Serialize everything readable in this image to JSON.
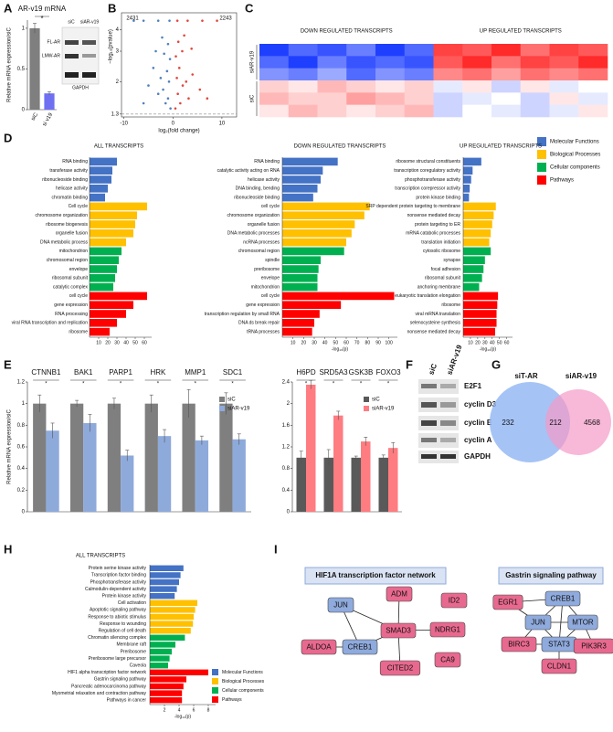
{
  "panel_labels": [
    "A",
    "B",
    "C",
    "D",
    "E",
    "F",
    "G",
    "H",
    "I"
  ],
  "chart_data": [
    {
      "type": "bar",
      "title": "AR-v19 mRNA",
      "categories": [
        "siC",
        "si v19"
      ],
      "values": [
        1,
        0.2
      ],
      "errors": [
        0.06,
        0.02
      ],
      "colors": [
        "#7f7f7f",
        "#6f6ff2"
      ],
      "ylim": [
        0,
        1.1
      ],
      "yticks": [
        0,
        0.5,
        1
      ],
      "ylabel": "Relative mRNA expression/siC",
      "annotation": "*"
    },
    {
      "type": "scatter",
      "xlabel": "log₂(fold change)",
      "ylabel": "−log₁₀(pvalue)",
      "log_y": true,
      "xlim": [
        -10.5,
        13
      ],
      "xticks": [
        -10,
        0,
        10
      ],
      "ylim": [
        1.25,
        5
      ],
      "yticks": [
        1.3,
        2,
        3,
        4
      ],
      "hline": 1.3,
      "series": [
        {
          "color": "#4f81bd",
          "count": 2431,
          "x": [
            -0.5,
            -1,
            -1.5,
            -2,
            -0.8,
            -1.2,
            -2.5,
            -3,
            -0.6,
            -1.8,
            -4,
            -5,
            -1,
            -2.2,
            -0.7,
            -3,
            -6,
            -8,
            -6,
            -3.5
          ],
          "y": [
            1.4,
            1.6,
            1.5,
            1.8,
            2.0,
            2.3,
            2.1,
            1.7,
            2.7,
            2.9,
            2.4,
            1.9,
            3.3,
            3.6,
            4.5,
            4.5,
            4.5,
            4.5,
            1.5,
            3.0
          ]
        },
        {
          "color": "#e0473c",
          "count": 2243,
          "x": [
            0.5,
            1,
            1.5,
            2,
            0.8,
            1.3,
            2.7,
            3.2,
            0.6,
            1.9,
            4,
            5.5,
            1.1,
            2.3,
            0.9,
            3,
            6,
            9,
            7,
            3.8
          ],
          "y": [
            1.4,
            1.7,
            1.5,
            1.9,
            2.1,
            2.4,
            2.0,
            1.6,
            2.8,
            3.0,
            2.2,
            1.8,
            3.4,
            3.7,
            4.5,
            4.5,
            4.5,
            4.5,
            1.6,
            3.1
          ]
        }
      ]
    },
    {
      "type": "heatmap",
      "colors": [
        "#1f3fff",
        "#ffffff",
        "#ff2a2a"
      ],
      "col_labels": [
        "DOWN REGULATED TRANSCRIPTS",
        null,
        null,
        null,
        null,
        null,
        "UP REGULATED TRANSCRIPTS",
        null,
        null,
        null,
        null,
        null
      ],
      "row_labels": [
        "siAR-v19",
        null,
        null,
        "siC",
        null,
        null
      ],
      "z": [
        [
          -0.9,
          -0.7,
          -0.8,
          -0.6,
          -0.9,
          -0.7,
          0.8,
          0.7,
          0.9,
          0.6,
          0.8,
          0.7
        ],
        [
          -0.7,
          -0.9,
          -0.6,
          -0.8,
          -0.7,
          -0.8,
          0.7,
          0.9,
          0.6,
          0.8,
          0.7,
          0.9
        ],
        [
          -0.5,
          -0.6,
          -0.4,
          -0.7,
          -0.5,
          -0.6,
          0.5,
          0.6,
          0.4,
          0.6,
          0.5,
          0.6
        ],
        [
          0.2,
          0.1,
          0.3,
          0.2,
          0.1,
          0.2,
          -0.1,
          0.1,
          -0.2,
          0.1,
          -0.1,
          0.0
        ],
        [
          0.3,
          0.2,
          0.2,
          0.4,
          0.3,
          0.2,
          -0.2,
          -0.1,
          0.0,
          -0.2,
          0.1,
          -0.1
        ],
        [
          0.1,
          0.3,
          0.2,
          0.1,
          0.2,
          0.3,
          -0.2,
          0.0,
          -0.1,
          -0.2,
          -0.1,
          0.1
        ]
      ]
    },
    {
      "type": "hbar",
      "legend": "d",
      "title": "ALL TRANSCRIPTS",
      "xlim": [
        0,
        68
      ],
      "xticks": [
        10,
        20,
        30,
        40,
        50,
        60
      ],
      "groups": [
        {
          "categories": [
            "RNA binding",
            "transferase activity",
            "ribonucleoside binding",
            "helicase activity",
            "chromatin binding"
          ],
          "values": [
            30,
            25,
            24,
            20,
            17
          ]
        },
        {
          "categories": [
            "Cell cycle",
            "chromosome organization",
            "ribosome biogenesis",
            "organelle fusion",
            "DNA metabolic process"
          ],
          "values": [
            63,
            52,
            50,
            48,
            40
          ]
        },
        {
          "categories": [
            "mitochondrion",
            "chromosomal region",
            "envelope",
            "ribosomal subunit",
            "catalytic complex"
          ],
          "values": [
            35,
            32,
            30,
            28,
            26
          ]
        },
        {
          "categories": [
            "cell cycle",
            "gene expression",
            "RNA processing",
            "viral RNA transcription and replication",
            "ribosome"
          ],
          "values": [
            63,
            48,
            40,
            30,
            22
          ]
        }
      ]
    },
    {
      "type": "hbar",
      "legend": "d",
      "title": "DOWN REGULATED TRANSCRIPTS",
      "xlabel": "-log₁₀(p)",
      "xlim": [
        0,
        108
      ],
      "xticks": [
        10,
        20,
        30,
        40,
        50,
        60,
        70,
        80,
        90,
        100
      ],
      "groups": [
        {
          "categories": [
            "RNA binding",
            "catalytic activity acting on RNA",
            "helicase activity",
            "DNA binding, bending",
            "ribonucleoside binding"
          ],
          "values": [
            52,
            38,
            36,
            33,
            29
          ]
        },
        {
          "categories": [
            "cell cycle",
            "chromosome organization",
            "organelle fusion",
            "DNA metabolic processes",
            "ncRNA processes"
          ],
          "values": [
            82,
            77,
            68,
            65,
            60
          ]
        },
        {
          "categories": [
            "chromosomal region",
            "spindle",
            "preribosome",
            "envelope",
            "mitochondrion"
          ],
          "values": [
            58,
            36,
            34,
            33,
            33
          ]
        },
        {
          "categories": [
            "cell cycle",
            "gene expression",
            "transcription regulation by small RNA",
            "DNA ds break repair",
            "tRNA processes"
          ],
          "values": [
            105,
            55,
            35,
            30,
            28
          ]
        }
      ]
    },
    {
      "type": "hbar",
      "legend": "d",
      "title": "UP REGULATED TRANSCRIPTS",
      "xlabel": "-log₁₀(p)",
      "xlim": [
        0,
        68
      ],
      "xticks": [
        10,
        20,
        30,
        40,
        50,
        60
      ],
      "groups": [
        {
          "categories": [
            "ribosome structural constituents",
            "transcription coregulatory activity",
            "phosphotransferase activity",
            "transcription corepressor activity",
            "protein kinase binding"
          ],
          "values": [
            25,
            13,
            11,
            9,
            8
          ]
        },
        {
          "categories": [
            "SRP dependent protein targeting to membrane",
            "nonsense mediated decay",
            "protein targeting to ER",
            "mRNA catabolic processes",
            "translation initiation"
          ],
          "values": [
            45,
            42,
            40,
            38,
            36
          ]
        },
        {
          "categories": [
            "cytosolic ribosome",
            "synapse",
            "focal adhesion",
            "ribosomal subunit",
            "anchoring membrane"
          ],
          "values": [
            38,
            30,
            28,
            26,
            22
          ]
        },
        {
          "categories": [
            "eukaryotic translation elongation",
            "ribosome",
            "viral mRNA translation",
            "selenocysteine synthesis",
            "nonsense mediated decay"
          ],
          "values": [
            48,
            47,
            46,
            46,
            44
          ]
        }
      ]
    },
    {
      "type": "bar",
      "ylabel": "Relative mRNA expression/siC",
      "categories": [
        "CTNNB1",
        "BAK1",
        "PARP1",
        "HRK",
        "MMP1",
        "SDC1"
      ],
      "significance": [
        "*",
        "*",
        "*",
        "*",
        "*",
        "*"
      ],
      "ylim": [
        0,
        1.2
      ],
      "yticks": [
        0,
        0.2,
        0.4,
        0.6,
        0.8,
        1,
        1.2
      ],
      "series": [
        {
          "name": "siC",
          "color": "#7f7f7f",
          "values": [
            1,
            1,
            1,
            1,
            1,
            1
          ],
          "errors": [
            0.08,
            0.03,
            0.05,
            0.08,
            0.13,
            0.1
          ]
        },
        {
          "name": "siAR-v19",
          "color": "#8eaadb",
          "values": [
            0.75,
            0.82,
            0.52,
            0.7,
            0.66,
            0.67
          ],
          "errors": [
            0.07,
            0.08,
            0.05,
            0.06,
            0.04,
            0.05
          ]
        }
      ]
    },
    {
      "type": "bar",
      "categories": [
        "H6PD",
        "SRD5A3",
        "GSK3B",
        "FOXO3"
      ],
      "significance": [
        "*",
        "*",
        "*",
        "*"
      ],
      "ylim": [
        0,
        2.4
      ],
      "yticks": [
        0,
        0.4,
        0.8,
        1.2,
        1.6,
        2,
        2.4
      ],
      "series": [
        {
          "name": "siC",
          "color": "#595959",
          "values": [
            1,
            1,
            1,
            1
          ],
          "errors": [
            0.12,
            0.15,
            0.03,
            0.05
          ]
        },
        {
          "name": "siAR-v19",
          "color": "#ff7c80",
          "values": [
            2.35,
            1.78,
            1.3,
            1.18
          ],
          "errors": [
            0.08,
            0.08,
            0.08,
            0.1
          ]
        }
      ]
    },
    {
      "type": "hbar",
      "legend": "h",
      "title": "ALL TRANSCRIPTS",
      "xlabel": "-log₁₀(p)",
      "xlim": [
        0,
        9
      ],
      "xticks": [
        2,
        4,
        6,
        8
      ],
      "groups": [
        {
          "categories": [
            "Protein serine kinase activity",
            "Transcription factor binding",
            "Phosphotransferase activity",
            "Calmodulin-dependent activity",
            "Protein kinase activity"
          ],
          "values": [
            4.6,
            4.2,
            4.0,
            3.7,
            3.4
          ]
        },
        {
          "categories": [
            "Cell activation",
            "Apoptotic signaling pathway",
            "Response to abiotic stimulus",
            "Response to wounding",
            "Regulation of cell death"
          ],
          "values": [
            6.5,
            6.2,
            6.0,
            5.9,
            5.6
          ]
        },
        {
          "categories": [
            "Chromatin silencing complex",
            "Membrane raft",
            "Preribosome",
            "Preribosome large precursor",
            "Caveola"
          ],
          "values": [
            4.8,
            3.5,
            3.0,
            2.7,
            2.5
          ]
        },
        {
          "categories": [
            "HIF1 alpha transcription factor network",
            "Gastrin signaling pathway",
            "Pancreatic adenocarcinoma pathway",
            "Myometrial relaxation and contraction pathway",
            "Pathways in cancer"
          ],
          "values": [
            8.0,
            5.0,
            4.6,
            4.4,
            4.4
          ]
        }
      ]
    }
  ],
  "legends": {
    "d": [
      {
        "name": "Molecular Functions",
        "color": "#4472c4"
      },
      {
        "name": "Biological Processes",
        "color": "#ffc000"
      },
      {
        "name": "Cellular components",
        "color": "#00b050"
      },
      {
        "name": "Pathways",
        "color": "#ff0000"
      }
    ],
    "h": [
      {
        "name": "Molecular Functions",
        "color": "#4472c4"
      },
      {
        "name": "Biological Processes",
        "color": "#ffc000"
      },
      {
        "name": "Cellular components",
        "color": "#00b050"
      },
      {
        "name": "Pathways",
        "color": "#ff0000"
      }
    ]
  },
  "blot_a": {
    "lanes": [
      "siC",
      "siAR-v19"
    ],
    "bands": [
      "FL-AR",
      "LMW-AR",
      "GAPDH"
    ]
  },
  "blot_f": {
    "lanes": [
      "siC",
      "siAR-v19"
    ],
    "bands": [
      "E2F1",
      "cyclin D3",
      "cyclin E",
      "cyclin A",
      "GAPDH"
    ]
  },
  "venn": {
    "sets": [
      "siT-AR",
      "siAR-v19"
    ],
    "counts": [
      232,
      212,
      4568
    ]
  },
  "networks": [
    {
      "title": "HIF1A transcription factor network",
      "nodes": [
        {
          "label": "JUN",
          "color": "#8faadc"
        },
        {
          "label": "ADM",
          "color": "#e8698f"
        },
        {
          "label": "ID2",
          "color": "#e8698f"
        },
        {
          "label": "SMAD3",
          "color": "#e8698f"
        },
        {
          "label": "NDRG1",
          "color": "#e8698f"
        },
        {
          "label": "ALDOA",
          "color": "#e8698f"
        },
        {
          "label": "CREB1",
          "color": "#8faadc"
        },
        {
          "label": "CITED2",
          "color": "#e8698f"
        },
        {
          "label": "CA9",
          "color": "#e8698f"
        }
      ]
    },
    {
      "title": "Gastrin signaling pathway",
      "nodes": [
        {
          "label": "EGR1",
          "color": "#e8698f"
        },
        {
          "label": "CREB1",
          "color": "#8faadc"
        },
        {
          "label": "JUN",
          "color": "#8faadc"
        },
        {
          "label": "MTOR",
          "color": "#8faadc"
        },
        {
          "label": "BIRC3",
          "color": "#e8698f"
        },
        {
          "label": "STAT3",
          "color": "#8faadc"
        },
        {
          "label": "PIK3R3",
          "color": "#e8698f"
        },
        {
          "label": "CLDN1",
          "color": "#e8698f"
        }
      ]
    }
  ]
}
